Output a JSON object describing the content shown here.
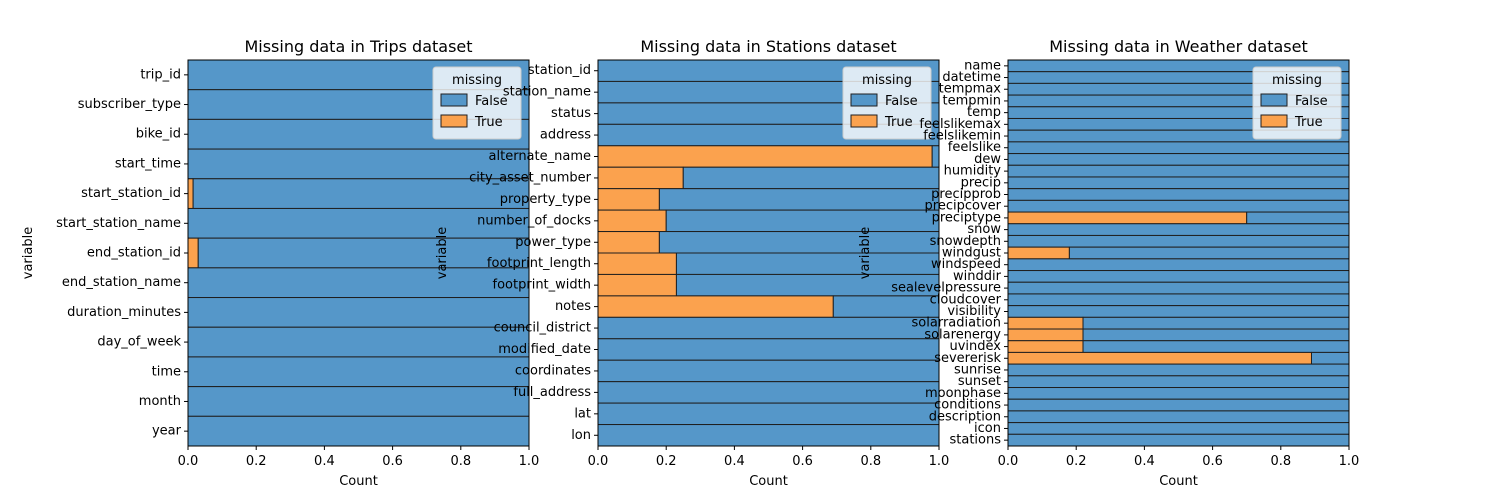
{
  "colors": {
    "false": "#5597c9",
    "true": "#fba24e",
    "edge": "#1f1f1f",
    "legend_bg": "#ffffff"
  },
  "chart_data": [
    {
      "type": "bar",
      "orientation": "horizontal",
      "stacked": "fill",
      "title": "Missing data in Trips dataset",
      "xlabel": "Count",
      "ylabel": "variable",
      "xlim": [
        0,
        1
      ],
      "xticks": [
        "0.0",
        "0.2",
        "0.4",
        "0.6",
        "0.8",
        "1.0"
      ],
      "legend": {
        "title": "missing",
        "position": "top-right",
        "entries": [
          "False",
          "True"
        ]
      },
      "categories": [
        "trip_id",
        "subscriber_type",
        "bike_id",
        "start_time",
        "start_station_id",
        "start_station_name",
        "end_station_id",
        "end_station_name",
        "duration_minutes",
        "day_of_week",
        "time",
        "month",
        "year"
      ],
      "series": [
        {
          "name": "True",
          "values": [
            0,
            0,
            0,
            0,
            0.015,
            0,
            0.03,
            0,
            0,
            0,
            0,
            0,
            0
          ]
        },
        {
          "name": "False",
          "values": [
            1,
            1,
            1,
            1,
            0.985,
            1,
            0.97,
            1,
            1,
            1,
            1,
            1,
            1
          ]
        }
      ]
    },
    {
      "type": "bar",
      "orientation": "horizontal",
      "stacked": "fill",
      "title": "Missing data in Stations dataset",
      "xlabel": "Count",
      "ylabel": "variable",
      "xlim": [
        0,
        1
      ],
      "xticks": [
        "0.0",
        "0.2",
        "0.4",
        "0.6",
        "0.8",
        "1.0"
      ],
      "legend": {
        "title": "missing",
        "position": "top-right",
        "entries": [
          "False",
          "True"
        ]
      },
      "categories": [
        "station_id",
        "station_name",
        "status",
        "address",
        "alternate_name",
        "city_asset_number",
        "property_type",
        "number_of_docks",
        "power_type",
        "footprint_length",
        "footprint_width",
        "notes",
        "council_district",
        "modified_date",
        "coordinates",
        "full_address",
        "lat",
        "lon"
      ],
      "series": [
        {
          "name": "True",
          "values": [
            0,
            0,
            0,
            0,
            0.98,
            0.25,
            0.18,
            0.2,
            0.18,
            0.23,
            0.23,
            0.69,
            0,
            0,
            0,
            0,
            0,
            0
          ]
        },
        {
          "name": "False",
          "values": [
            1,
            1,
            1,
            1,
            0.02,
            0.75,
            0.82,
            0.8,
            0.82,
            0.77,
            0.77,
            0.31,
            1,
            1,
            1,
            1,
            1,
            1
          ]
        }
      ]
    },
    {
      "type": "bar",
      "orientation": "horizontal",
      "stacked": "fill",
      "title": "Missing data in Weather dataset",
      "xlabel": "Count",
      "ylabel": "variable",
      "xlim": [
        0,
        1
      ],
      "xticks": [
        "0.0",
        "0.2",
        "0.4",
        "0.6",
        "0.8",
        "1.0"
      ],
      "legend": {
        "title": "missing",
        "position": "top-right",
        "entries": [
          "False",
          "True"
        ]
      },
      "categories": [
        "name",
        "datetime",
        "tempmax",
        "tempmin",
        "temp",
        "feelslikemax",
        "feelslikemin",
        "feelslike",
        "dew",
        "humidity",
        "precip",
        "precipprob",
        "precipcover",
        "preciptype",
        "snow",
        "snowdepth",
        "windgust",
        "windspeed",
        "winddir",
        "sealevelpressure",
        "cloudcover",
        "visibility",
        "solarradiation",
        "solarenergy",
        "uvindex",
        "severerisk",
        "sunrise",
        "sunset",
        "moonphase",
        "conditions",
        "description",
        "icon",
        "stations"
      ],
      "series": [
        {
          "name": "True",
          "values": [
            0,
            0,
            0,
            0,
            0,
            0,
            0,
            0,
            0,
            0,
            0,
            0,
            0,
            0.7,
            0,
            0,
            0.18,
            0,
            0,
            0,
            0,
            0,
            0.22,
            0.22,
            0.22,
            0.89,
            0,
            0,
            0,
            0,
            0,
            0,
            0
          ]
        },
        {
          "name": "False",
          "values": [
            1,
            1,
            1,
            1,
            1,
            1,
            1,
            1,
            1,
            1,
            1,
            1,
            1,
            0.3,
            1,
            1,
            0.82,
            1,
            1,
            1,
            1,
            1,
            0.78,
            0.78,
            0.78,
            0.11,
            1,
            1,
            1,
            1,
            1,
            1,
            1
          ]
        }
      ]
    }
  ]
}
